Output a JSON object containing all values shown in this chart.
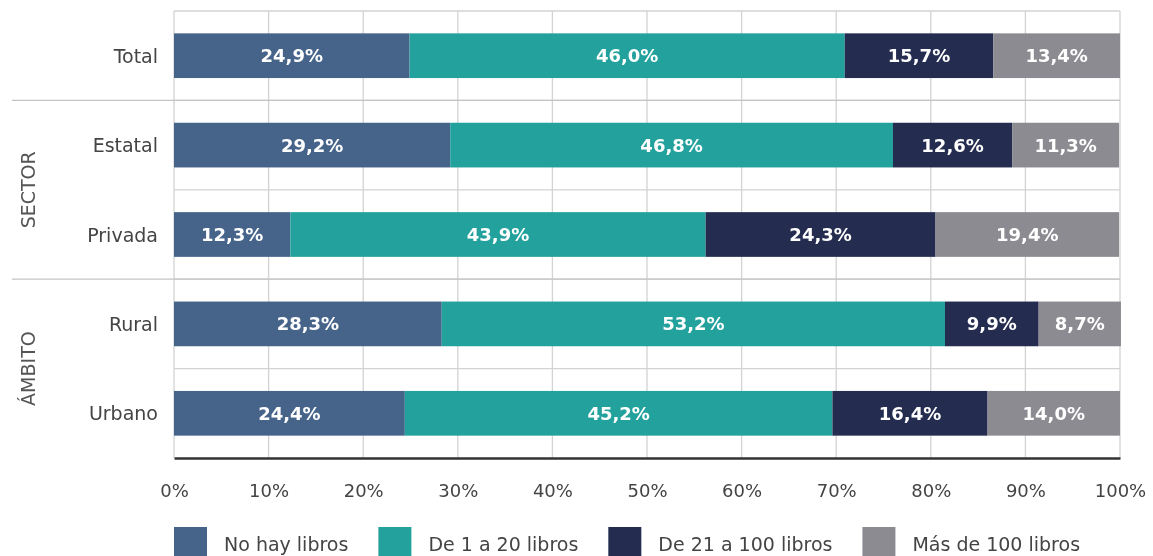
{
  "chart_data": {
    "type": "bar",
    "orientation": "horizontal",
    "stacked": true,
    "categories": [
      "Total",
      "Estatal",
      "Privada",
      "Rural",
      "Urbano"
    ],
    "series": [
      {
        "name": "No hay libros",
        "color": "#46648a",
        "values": [
          24.9,
          29.2,
          12.3,
          28.3,
          24.4
        ],
        "value_labels": [
          "24,9%",
          "29,2%",
          "12,3%",
          "28,3%",
          "24,4%"
        ]
      },
      {
        "name": "De 1 a 20 libros",
        "color": "#23a19c",
        "values": [
          46.0,
          46.8,
          43.9,
          53.2,
          45.2
        ],
        "value_labels": [
          "46,0%",
          "46,8%",
          "43,9%",
          "53,2%",
          "45,2%"
        ]
      },
      {
        "name": "De 21 a 100 libros",
        "color": "#242c4f",
        "values": [
          15.7,
          12.6,
          24.3,
          9.9,
          16.4
        ],
        "value_labels": [
          "15,7%",
          "12,6%",
          "24,3%",
          "9,9%",
          "16,4%"
        ]
      },
      {
        "name": "Más de 100 libros",
        "color": "#8c8b91",
        "values": [
          13.4,
          11.3,
          19.4,
          8.7,
          14.0
        ],
        "value_labels": [
          "13,4%",
          "11,3%",
          "19,4%",
          "8,7%",
          "14,0%"
        ]
      }
    ],
    "xlim": [
      0,
      100
    ],
    "xticks": [
      {
        "value": 0,
        "label": "0%"
      },
      {
        "value": 10,
        "label": "10%"
      },
      {
        "value": 20,
        "label": "20%"
      },
      {
        "value": 30,
        "label": "30%"
      },
      {
        "value": 40,
        "label": "40%"
      },
      {
        "value": 50,
        "label": "50%"
      },
      {
        "value": 60,
        "label": "60%"
      },
      {
        "value": 70,
        "label": "70%"
      },
      {
        "value": 80,
        "label": "80%"
      },
      {
        "value": 90,
        "label": "90%"
      },
      {
        "value": 100,
        "label": "100%"
      }
    ],
    "annotations": [
      "SECTOR",
      "ÁMBITO"
    ],
    "grid": true,
    "legend": "bottom"
  }
}
